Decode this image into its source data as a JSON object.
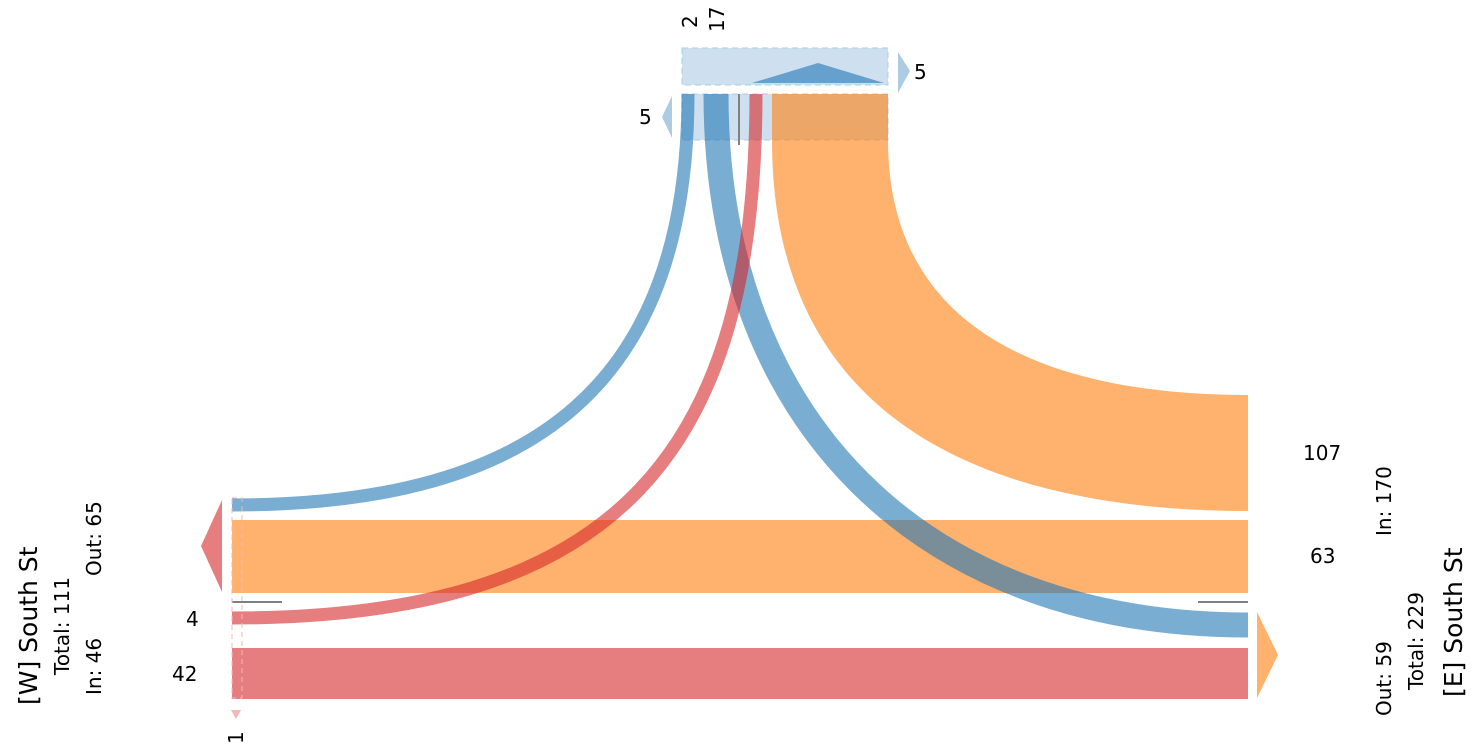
{
  "colors": {
    "blue": "#1f77b4",
    "orange": "#ff7f0e",
    "red": "#d62728",
    "north_zone": "#aecbe4"
  },
  "west": {
    "title": "[W] South St",
    "total": "Total: 111",
    "in": "In: 46",
    "out": "Out: 65",
    "entry_values": [
      "4",
      "42"
    ],
    "below_value": "1"
  },
  "east": {
    "title": "[E] South St",
    "total": "Total: 229",
    "in": "In: 170",
    "out": "Out: 59",
    "entry_values": [
      "107",
      "63"
    ]
  },
  "north": {
    "top_values": [
      "2",
      "17"
    ],
    "out_value": "5",
    "in_value": "5"
  },
  "chart_data": {
    "type": "turning-movement",
    "legs": [
      "West",
      "East",
      "North"
    ],
    "flows": [
      {
        "from": "West",
        "to": "East",
        "value": 42,
        "color": "red"
      },
      {
        "from": "West",
        "to": "North",
        "value": 4,
        "color": "red"
      },
      {
        "from": "East",
        "to": "West",
        "value": 63,
        "color": "orange"
      },
      {
        "from": "East",
        "to": "North",
        "value": 107,
        "color": "orange"
      },
      {
        "from": "North",
        "to": "West",
        "value": 2,
        "color": "blue"
      },
      {
        "from": "North",
        "to": "East",
        "value": 17,
        "color": "blue"
      }
    ]
  }
}
